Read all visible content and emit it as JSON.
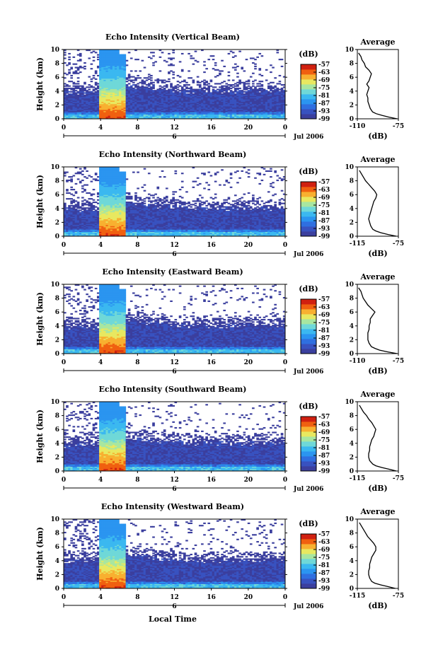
{
  "colors": {
    "scale": [
      "#3b3f9e",
      "#3852c0",
      "#2f6fe0",
      "#2b95f0",
      "#3bb8f0",
      "#6fd8d8",
      "#a8e6a0",
      "#e8e860",
      "#f8b030",
      "#f06010",
      "#d02010"
    ],
    "axis": "#000000",
    "white_ticks": "#ffffff"
  },
  "x_axis_label": "Local Time",
  "colorbar": {
    "unit_label": "(dB)",
    "ticks": [
      "-57",
      "-63",
      "-69",
      "-75",
      "-81",
      "-87",
      "-93",
      "-99"
    ]
  },
  "chart_data": [
    {
      "type": "heatmap",
      "title": "Echo Intensity (Vertical Beam)",
      "ylabel": "Height (km)",
      "ylim": [
        0,
        10
      ],
      "xlim": [
        0,
        24
      ],
      "x_ticks": [
        "0",
        "4",
        "8",
        "12",
        "16",
        "20",
        "0"
      ],
      "y_ticks": [
        "0",
        "2",
        "4",
        "6",
        "8",
        "10"
      ],
      "day_label": "6",
      "date_label": "Jul 2006",
      "clim": [
        -99,
        -57
      ],
      "profile": {
        "title": "Average",
        "xlabel": "(dB)",
        "x_ticks": [
          "-110",
          "-75"
        ],
        "xlim": [
          -110,
          -75
        ],
        "y_ticks": [
          "0",
          "2",
          "4",
          "6",
          "8",
          "10"
        ],
        "heights": [
          0,
          0.25,
          0.5,
          0.75,
          1,
          1.5,
          2,
          2.5,
          3,
          3.5,
          4,
          4.5,
          5,
          5.5,
          6,
          6.5,
          7,
          7.5,
          8,
          8.5,
          9,
          9.5
        ],
        "values": [
          -76,
          -83,
          -89,
          -94,
          -97,
          -99,
          -100,
          -101,
          -101,
          -102,
          -101,
          -100,
          -102,
          -100,
          -99,
          -98,
          -100,
          -103,
          -104,
          -106,
          -107,
          -109
        ]
      }
    },
    {
      "type": "heatmap",
      "title": "Echo Intensity (Northward Beam)",
      "ylabel": "Height (km)",
      "ylim": [
        0,
        10
      ],
      "xlim": [
        0,
        24
      ],
      "x_ticks": [
        "0",
        "4",
        "8",
        "12",
        "16",
        "20",
        "0"
      ],
      "y_ticks": [
        "0",
        "2",
        "4",
        "6",
        "8",
        "10"
      ],
      "day_label": "6",
      "date_label": "Jul 2006",
      "clim": [
        -99,
        -57
      ],
      "profile": {
        "title": "Average",
        "xlabel": "(dB)",
        "x_ticks": [
          "-115",
          "-75"
        ],
        "xlim": [
          -115,
          -75
        ],
        "y_ticks": [
          "0",
          "2",
          "4",
          "6",
          "8",
          "10"
        ],
        "heights": [
          0,
          0.25,
          0.5,
          0.75,
          1,
          1.5,
          2,
          2.5,
          3,
          3.5,
          4,
          4.5,
          5,
          5.5,
          6,
          6.5,
          7,
          7.5,
          8,
          8.5,
          9,
          9.5
        ],
        "values": [
          -77,
          -85,
          -92,
          -97,
          -100,
          -102,
          -103,
          -104,
          -103,
          -102,
          -101,
          -100,
          -99,
          -97,
          -96,
          -98,
          -101,
          -104,
          -107,
          -109,
          -111,
          -113
        ]
      }
    },
    {
      "type": "heatmap",
      "title": "Echo Intensity (Eastward Beam)",
      "ylabel": "Height (km)",
      "ylim": [
        0,
        10
      ],
      "xlim": [
        0,
        24
      ],
      "x_ticks": [
        "0",
        "4",
        "8",
        "12",
        "16",
        "20",
        "0"
      ],
      "y_ticks": [
        "0",
        "2",
        "4",
        "6",
        "8",
        "10"
      ],
      "day_label": "6",
      "date_label": "Jul 2006",
      "clim": [
        -99,
        -57
      ],
      "profile": {
        "title": "Average",
        "xlabel": "(dB)",
        "x_ticks": [
          "-110",
          "-75"
        ],
        "xlim": [
          -110,
          -75
        ],
        "y_ticks": [
          "0",
          "2",
          "4",
          "6",
          "8",
          "10"
        ],
        "heights": [
          0,
          0.25,
          0.5,
          0.75,
          1,
          1.5,
          2,
          2.5,
          3,
          3.5,
          4,
          4.5,
          5,
          5.5,
          6,
          6.5,
          7,
          7.5,
          8,
          8.5,
          9,
          9.5
        ],
        "values": [
          -76,
          -84,
          -91,
          -95,
          -98,
          -100,
          -101,
          -101,
          -101,
          -100,
          -100,
          -99,
          -99,
          -97,
          -95,
          -98,
          -101,
          -103,
          -105,
          -106,
          -107,
          -109
        ]
      }
    },
    {
      "type": "heatmap",
      "title": "Echo Intensity (Southward Beam)",
      "ylabel": "Height (km)",
      "ylim": [
        0,
        10
      ],
      "xlim": [
        0,
        24
      ],
      "x_ticks": [
        "0",
        "4",
        "8",
        "12",
        "16",
        "20",
        "0"
      ],
      "y_ticks": [
        "0",
        "2",
        "4",
        "6",
        "8",
        "10"
      ],
      "day_label": "6",
      "date_label": "Jul 2006",
      "clim": [
        -99,
        -57
      ],
      "profile": {
        "title": "Average",
        "xlabel": "(dB)",
        "x_ticks": [
          "-115",
          "-75"
        ],
        "xlim": [
          -115,
          -75
        ],
        "y_ticks": [
          "0",
          "2",
          "4",
          "6",
          "8",
          "10"
        ],
        "heights": [
          0,
          0.25,
          0.5,
          0.75,
          1,
          1.5,
          2,
          2.5,
          3,
          3.5,
          4,
          4.5,
          5,
          5.5,
          6,
          6.5,
          7,
          7.5,
          8,
          8.5,
          9,
          9.5
        ],
        "values": [
          -77,
          -84,
          -91,
          -97,
          -100,
          -103,
          -104,
          -104,
          -103,
          -103,
          -102,
          -101,
          -99,
          -98,
          -97,
          -99,
          -101,
          -104,
          -106,
          -109,
          -111,
          -113
        ]
      }
    },
    {
      "type": "heatmap",
      "title": "Echo Intensity (Westward Beam)",
      "ylabel": "Height (km)",
      "ylim": [
        0,
        10
      ],
      "xlim": [
        0,
        24
      ],
      "x_ticks": [
        "0",
        "4",
        "8",
        "12",
        "16",
        "20",
        "0"
      ],
      "y_ticks": [
        "0",
        "2",
        "4",
        "6",
        "8",
        "10"
      ],
      "day_label": "6",
      "date_label": "Jul 2006",
      "clim": [
        -99,
        -57
      ],
      "profile": {
        "title": "Average",
        "xlabel": "(dB)",
        "x_ticks": [
          "-115",
          "-75"
        ],
        "xlim": [
          -115,
          -75
        ],
        "y_ticks": [
          "0",
          "2",
          "4",
          "6",
          "8",
          "10"
        ],
        "heights": [
          0,
          0.25,
          0.5,
          0.75,
          1,
          1.5,
          2,
          2.5,
          3,
          3.5,
          4,
          4.5,
          5,
          5.5,
          6,
          6.5,
          7,
          7.5,
          8,
          8.5,
          9,
          9.5
        ],
        "values": [
          -78,
          -85,
          -92,
          -98,
          -101,
          -103,
          -104,
          -104,
          -103,
          -103,
          -102,
          -101,
          -99,
          -97,
          -97,
          -99,
          -102,
          -105,
          -107,
          -109,
          -111,
          -113
        ]
      }
    }
  ]
}
